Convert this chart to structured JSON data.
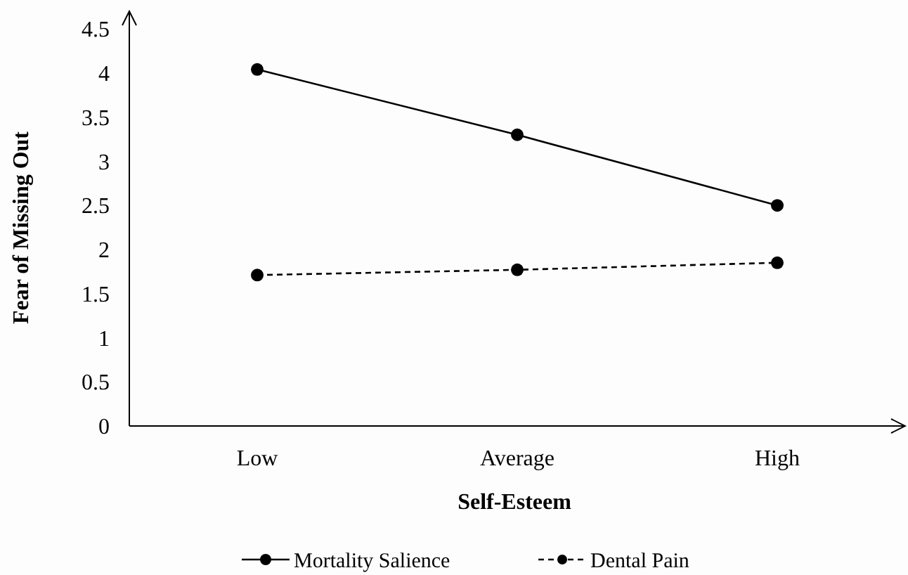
{
  "chart_data": {
    "type": "line",
    "xlabel": "Self-Esteem",
    "ylabel": "Fear of Missing Out",
    "categories": [
      "Low",
      "Average",
      "High"
    ],
    "series": [
      {
        "name": "Mortality Salience",
        "color": "#000000",
        "values": [
          4.04,
          3.3,
          2.5
        ],
        "line_style": "solid"
      },
      {
        "name": "Dental Pain",
        "color": "#000000",
        "values": [
          1.71,
          1.77,
          1.85
        ],
        "line_style": "dashed"
      }
    ],
    "ylim": [
      0,
      4.7
    ],
    "yticks": [
      "0",
      0.5,
      1,
      1.5,
      2,
      2.5,
      3,
      3.5,
      4,
      4.5
    ],
    "marker": "circle",
    "grid": false,
    "legend": "bottom"
  }
}
